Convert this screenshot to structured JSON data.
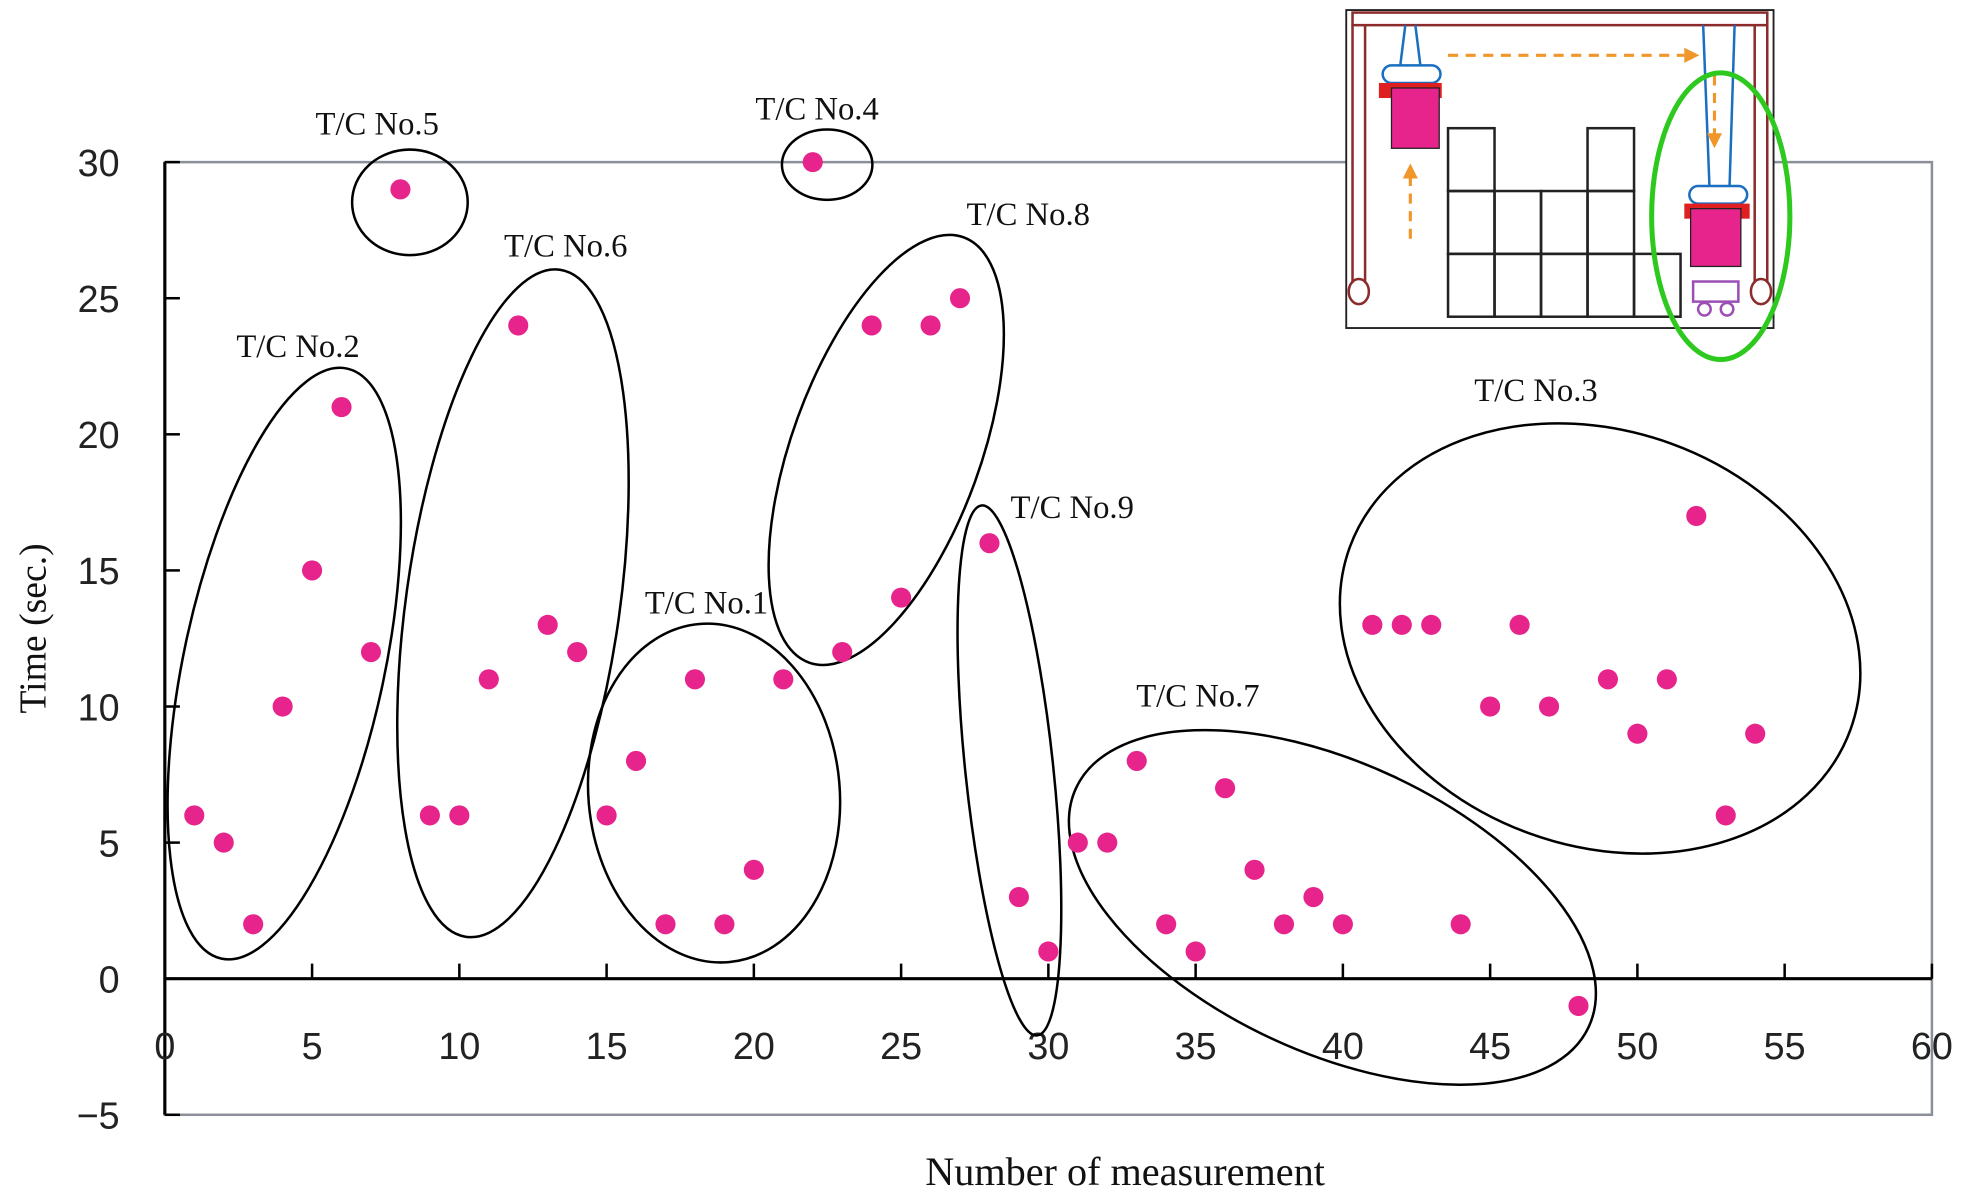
{
  "chart_data": {
    "type": "scatter",
    "x_label": "Number of measurement",
    "y_label": "Time (sec.)",
    "x": [
      1,
      2,
      3,
      4,
      5,
      6,
      7,
      8,
      9,
      10,
      11,
      12,
      13,
      14,
      15,
      16,
      17,
      18,
      19,
      20,
      21,
      22,
      23,
      24,
      25,
      26,
      27,
      28,
      29,
      30,
      31,
      32,
      33,
      34,
      35,
      36,
      37,
      38,
      39,
      40,
      41,
      42,
      43,
      44,
      45,
      46,
      47,
      48,
      49,
      50,
      51,
      52,
      53,
      54
    ],
    "values": [
      6,
      5,
      2,
      10,
      15,
      21,
      12,
      29,
      6,
      6,
      11,
      24,
      13,
      12,
      6,
      8,
      2,
      11,
      2,
      4,
      11,
      30,
      12,
      24,
      14,
      24,
      25,
      16,
      3,
      1,
      5,
      5,
      8,
      2,
      1,
      7,
      4,
      2,
      3,
      2,
      13,
      13,
      13,
      2,
      10,
      13,
      10,
      -1,
      11,
      9,
      11,
      17,
      6,
      9
    ],
    "color": "#e6248c",
    "xlim": [
      0,
      60
    ],
    "ylim": [
      -5,
      30
    ],
    "xticks": [
      0,
      5,
      10,
      15,
      20,
      25,
      30,
      35,
      40,
      45,
      50,
      55,
      60
    ],
    "yticks": [
      {
        "value": -5,
        "label": "−5"
      },
      0,
      5,
      10,
      15,
      20,
      25,
      30
    ],
    "annotations": [
      "T/C No.2",
      "T/C No.5",
      "T/C No.6",
      "T/C No.1",
      "T/C No.4",
      "T/C No.8",
      "T/C No.9",
      "T/C No.7",
      "T/C No.3"
    ]
  }
}
